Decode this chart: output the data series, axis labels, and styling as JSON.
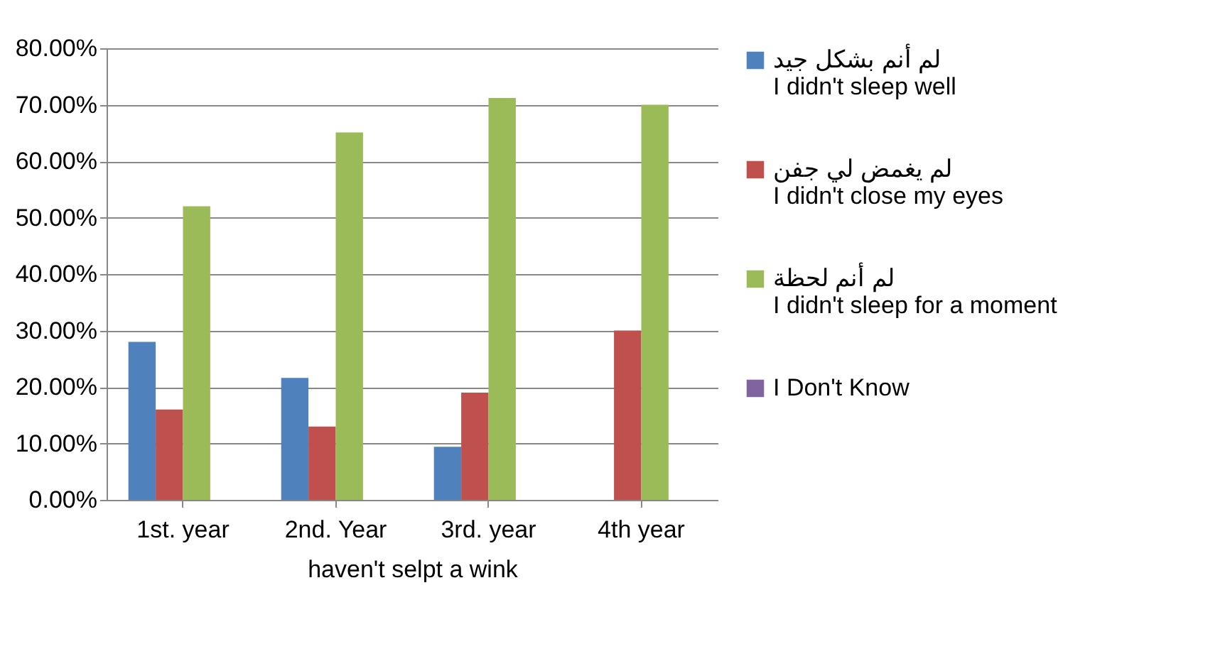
{
  "chart_data": {
    "type": "bar",
    "xlabel": "haven't selpt a wink",
    "categories": [
      "1st. year",
      "2nd. Year",
      "3rd. year",
      "4th year"
    ],
    "series": [
      {
        "name": "لم أنم بشكل جيد\nI didn't sleep well",
        "color": "#4f81bd",
        "values": [
          28,
          21.6,
          9.4,
          null
        ]
      },
      {
        "name": "لم يغمض لي جفن\nI didn't close my eyes",
        "color": "#c0504d",
        "values": [
          16,
          13,
          19,
          30
        ]
      },
      {
        "name": "لم أنم لحظة\nI didn't sleep for a moment",
        "color": "#9bbb59",
        "values": [
          52,
          65.1,
          71.2,
          70
        ]
      },
      {
        "name": "I Don't Know",
        "color": "#8064a2",
        "values": [
          null,
          null,
          null,
          null
        ]
      }
    ],
    "ylim": [
      0,
      80
    ],
    "yticks": [
      {
        "value": 0,
        "label": "0.00%"
      },
      {
        "value": 10,
        "label": "10.00%"
      },
      {
        "value": 20,
        "label": "20.00%"
      },
      {
        "value": 30,
        "label": "30.00%"
      },
      {
        "value": 40,
        "label": "40.00%"
      },
      {
        "value": 50,
        "label": "50.00%"
      },
      {
        "value": 60,
        "label": "60.00%"
      },
      {
        "value": 70,
        "label": "70.00%"
      },
      {
        "value": 80,
        "label": "80.00%"
      }
    ],
    "grid": "y",
    "legend": "right"
  }
}
